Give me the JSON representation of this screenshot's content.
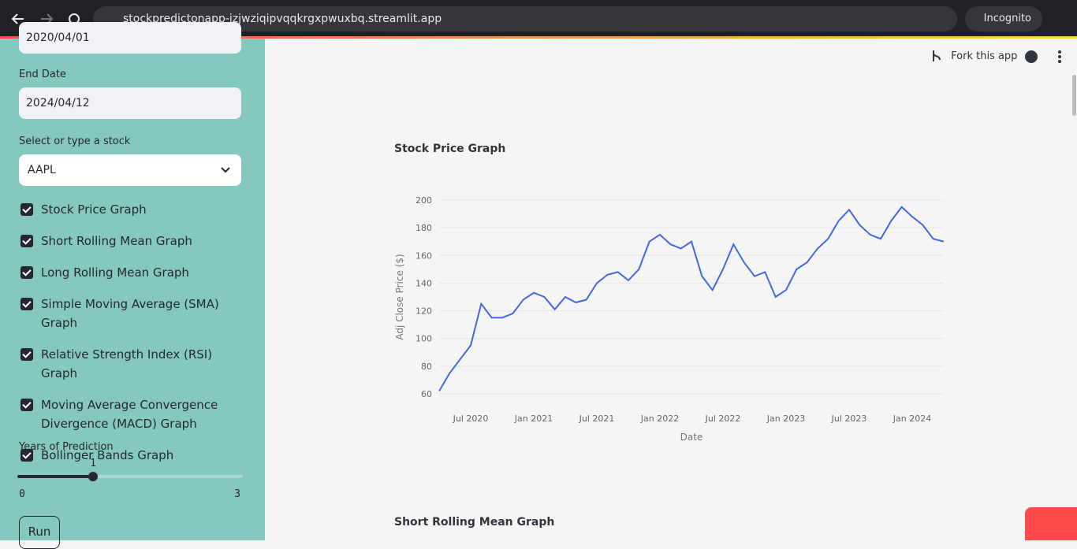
{
  "browser": {
    "url": "stockpredictonapp-jzjwziqipvqqkrgxpwuxbq.streamlit.app",
    "mode": "Incognito"
  },
  "sidebar": {
    "start_date": "2020/04/01",
    "end_date_label": "End Date",
    "end_date": "2024/04/12",
    "stock_label": "Select or type a stock",
    "stock": "AAPL",
    "options": [
      "Stock Price Graph",
      "Short Rolling Mean Graph",
      "Long Rolling Mean Graph",
      "Simple Moving Average (SMA) Graph",
      "Relative Strength Index (RSI) Graph",
      "Moving Average Convergence Divergence (MACD) Graph",
      "Bollinger Bands Graph"
    ],
    "years_label": "Years of Prediction",
    "years_value": 1,
    "years_min": 0,
    "years_max": 3,
    "run": "Run"
  },
  "header": {
    "fork": "Fork this app"
  },
  "chart_data": {
    "type": "line",
    "title": "Stock Price Graph",
    "xlabel": "Date",
    "ylabel": "Adj Close Price ($)",
    "x": [
      "2020-04",
      "2020-05",
      "2020-06",
      "2020-07",
      "2020-08",
      "2020-09",
      "2020-10",
      "2020-11",
      "2020-12",
      "2021-01",
      "2021-02",
      "2021-03",
      "2021-04",
      "2021-05",
      "2021-06",
      "2021-07",
      "2021-08",
      "2021-09",
      "2021-10",
      "2021-11",
      "2021-12",
      "2022-01",
      "2022-02",
      "2022-03",
      "2022-04",
      "2022-05",
      "2022-06",
      "2022-07",
      "2022-08",
      "2022-09",
      "2022-10",
      "2022-11",
      "2022-12",
      "2023-01",
      "2023-02",
      "2023-03",
      "2023-04",
      "2023-05",
      "2023-06",
      "2023-07",
      "2023-08",
      "2023-09",
      "2023-10",
      "2023-11",
      "2023-12",
      "2024-01",
      "2024-02",
      "2024-03",
      "2024-04"
    ],
    "series": [
      {
        "name": "AAPL",
        "color": "#4169e1",
        "values": [
          62,
          75,
          85,
          95,
          125,
          115,
          115,
          118,
          128,
          133,
          130,
          121,
          130,
          126,
          128,
          140,
          146,
          148,
          142,
          150,
          170,
          175,
          168,
          165,
          170,
          145,
          135,
          150,
          168,
          155,
          145,
          148,
          130,
          135,
          150,
          155,
          165,
          172,
          185,
          193,
          182,
          175,
          172,
          185,
          195,
          188,
          182,
          172,
          170
        ]
      }
    ],
    "xlim": [
      "2020-04",
      "2024-04"
    ],
    "xticks": [
      {
        "value": "2020-07",
        "label": "Jul 2020"
      },
      {
        "value": "2021-01",
        "label": "Jan 2021"
      },
      {
        "value": "2021-07",
        "label": "Jul 2021"
      },
      {
        "value": "2022-01",
        "label": "Jan 2022"
      },
      {
        "value": "2022-07",
        "label": "Jul 2022"
      },
      {
        "value": "2023-01",
        "label": "Jan 2023"
      },
      {
        "value": "2023-07",
        "label": "Jul 2023"
      },
      {
        "value": "2024-01",
        "label": "Jan 2024"
      }
    ],
    "ylim": [
      60,
      200
    ],
    "yticks": [
      60,
      80,
      100,
      120,
      140,
      160,
      180,
      200
    ],
    "grid": true
  },
  "next_section": "Short Rolling Mean Graph"
}
